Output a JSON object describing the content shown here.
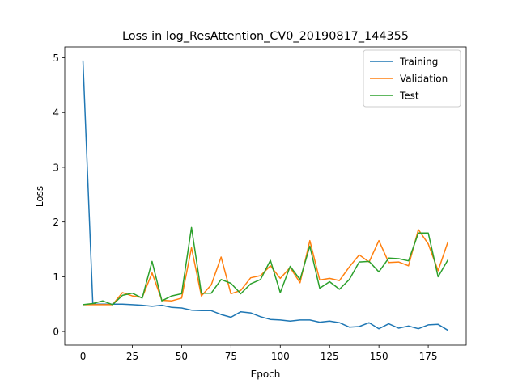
{
  "chart_data": {
    "type": "line",
    "title": "Loss in log_ResAttention_CV0_20190817_144355",
    "xlabel": "Epoch",
    "ylabel": "Loss",
    "xlim": [
      -9.25,
      194.25
    ],
    "ylim": [
      -0.25,
      5.2
    ],
    "xticks": [
      0,
      25,
      50,
      75,
      100,
      125,
      150,
      175
    ],
    "yticks": [
      0,
      1,
      2,
      3,
      4,
      5
    ],
    "grid": false,
    "legend_position": "top-right",
    "x": [
      0,
      5,
      10,
      15,
      20,
      25,
      30,
      35,
      40,
      45,
      50,
      55,
      60,
      65,
      70,
      75,
      80,
      85,
      90,
      95,
      100,
      105,
      110,
      115,
      120,
      125,
      130,
      135,
      140,
      145,
      150,
      155,
      160,
      165,
      170,
      175,
      180,
      185
    ],
    "series": [
      {
        "name": "Training",
        "color": "#1f77b4",
        "values": [
          4.95,
          0.5,
          0.5,
          0.5,
          0.5,
          0.49,
          0.48,
          0.46,
          0.48,
          0.44,
          0.43,
          0.39,
          0.38,
          0.38,
          0.31,
          0.26,
          0.36,
          0.34,
          0.27,
          0.22,
          0.21,
          0.19,
          0.21,
          0.21,
          0.17,
          0.19,
          0.16,
          0.08,
          0.09,
          0.16,
          0.05,
          0.14,
          0.06,
          0.1,
          0.05,
          0.12,
          0.13,
          0.02
        ]
      },
      {
        "name": "Validation",
        "color": "#ff7f0e",
        "values": [
          0.49,
          0.49,
          0.49,
          0.49,
          0.71,
          0.65,
          0.62,
          1.07,
          0.57,
          0.56,
          0.61,
          1.53,
          0.65,
          0.85,
          1.36,
          0.69,
          0.75,
          0.98,
          1.02,
          1.2,
          0.97,
          1.17,
          0.89,
          1.66,
          0.94,
          0.97,
          0.93,
          1.18,
          1.4,
          1.27,
          1.66,
          1.26,
          1.27,
          1.2,
          1.86,
          1.6,
          1.11,
          1.64
        ]
      },
      {
        "name": "Test",
        "color": "#2ca02c",
        "values": [
          0.49,
          0.51,
          0.56,
          0.49,
          0.66,
          0.7,
          0.61,
          1.28,
          0.56,
          0.65,
          0.69,
          1.9,
          0.7,
          0.7,
          0.95,
          0.88,
          0.69,
          0.87,
          0.95,
          1.3,
          0.71,
          1.19,
          0.95,
          1.56,
          0.79,
          0.91,
          0.77,
          0.95,
          1.27,
          1.28,
          1.09,
          1.34,
          1.33,
          1.29,
          1.8,
          1.8,
          1.0,
          1.31
        ]
      }
    ]
  }
}
